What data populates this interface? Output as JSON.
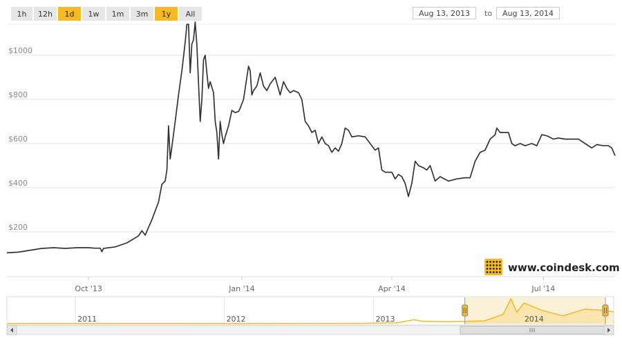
{
  "range_buttons": [
    {
      "label": "1h",
      "active": false
    },
    {
      "label": "12h",
      "active": false
    },
    {
      "label": "1d",
      "active": true
    },
    {
      "label": "1w",
      "active": false
    },
    {
      "label": "1m",
      "active": false
    },
    {
      "label": "3m",
      "active": false
    },
    {
      "label": "1y",
      "active": true
    },
    {
      "label": "All",
      "active": false
    }
  ],
  "date_range": {
    "from": "Aug 13, 2013",
    "to_label": "to",
    "to": "Aug 13, 2014"
  },
  "brand": {
    "text": "www.coindesk.com"
  },
  "colors": {
    "line": "#333333",
    "accent": "#f7b924",
    "grid": "#e6e6e6"
  },
  "chart_data": {
    "type": "line",
    "title": "",
    "xlabel": "",
    "ylabel": "",
    "ylim": [
      0,
      1150
    ],
    "yticks": [
      {
        "value": 200,
        "label": "$200"
      },
      {
        "value": 400,
        "label": "$400"
      },
      {
        "value": 600,
        "label": "$600"
      },
      {
        "value": 800,
        "label": "$800"
      },
      {
        "value": 1000,
        "label": "$1000"
      }
    ],
    "xticks": [
      {
        "date": "2013-10-01",
        "label": "Oct '13"
      },
      {
        "date": "2014-01-01",
        "label": "Jan '14"
      },
      {
        "date": "2014-04-01",
        "label": "Apr '14"
      },
      {
        "date": "2014-07-01",
        "label": "Jul '14"
      }
    ],
    "series": [
      {
        "points": [
          [
            "2013-08-13",
            105
          ],
          [
            "2013-08-20",
            108
          ],
          [
            "2013-08-27",
            117
          ],
          [
            "2013-09-03",
            125
          ],
          [
            "2013-09-10",
            128
          ],
          [
            "2013-09-17",
            125
          ],
          [
            "2013-09-24",
            128
          ],
          [
            "2013-10-01",
            128
          ],
          [
            "2013-10-05",
            126
          ],
          [
            "2013-10-08",
            126
          ],
          [
            "2013-10-09",
            110
          ],
          [
            "2013-10-10",
            125
          ],
          [
            "2013-10-17",
            132
          ],
          [
            "2013-10-24",
            150
          ],
          [
            "2013-10-31",
            182
          ],
          [
            "2013-11-02",
            205
          ],
          [
            "2013-11-04",
            185
          ],
          [
            "2013-11-06",
            220
          ],
          [
            "2013-11-08",
            255
          ],
          [
            "2013-11-10",
            295
          ],
          [
            "2013-11-12",
            335
          ],
          [
            "2013-11-14",
            415
          ],
          [
            "2013-11-16",
            430
          ],
          [
            "2013-11-17",
            480
          ],
          [
            "2013-11-18",
            680
          ],
          [
            "2013-11-19",
            530
          ],
          [
            "2013-11-20",
            585
          ],
          [
            "2013-11-22",
            700
          ],
          [
            "2013-11-24",
            820
          ],
          [
            "2013-11-26",
            930
          ],
          [
            "2013-11-28",
            1060
          ],
          [
            "2013-11-29",
            1140
          ],
          [
            "2013-11-30",
            1140
          ],
          [
            "2013-12-01",
            920
          ],
          [
            "2013-12-02",
            1050
          ],
          [
            "2013-12-03",
            1070
          ],
          [
            "2013-12-04",
            1150
          ],
          [
            "2013-12-05",
            1050
          ],
          [
            "2013-12-06",
            870
          ],
          [
            "2013-12-07",
            700
          ],
          [
            "2013-12-08",
            800
          ],
          [
            "2013-12-09",
            980
          ],
          [
            "2013-12-10",
            1000
          ],
          [
            "2013-12-11",
            920
          ],
          [
            "2013-12-12",
            850
          ],
          [
            "2013-12-13",
            880
          ],
          [
            "2013-12-15",
            830
          ],
          [
            "2013-12-16",
            700
          ],
          [
            "2013-12-17",
            650
          ],
          [
            "2013-12-18",
            530
          ],
          [
            "2013-12-19",
            700
          ],
          [
            "2013-12-20",
            640
          ],
          [
            "2013-12-21",
            600
          ],
          [
            "2013-12-22",
            630
          ],
          [
            "2013-12-24",
            680
          ],
          [
            "2013-12-26",
            750
          ],
          [
            "2013-12-28",
            740
          ],
          [
            "2013-12-30",
            745
          ],
          [
            "2013-12-31",
            760
          ],
          [
            "2014-01-02",
            800
          ],
          [
            "2014-01-04",
            900
          ],
          [
            "2014-01-05",
            950
          ],
          [
            "2014-01-06",
            930
          ],
          [
            "2014-01-07",
            820
          ],
          [
            "2014-01-08",
            840
          ],
          [
            "2014-01-10",
            860
          ],
          [
            "2014-01-12",
            920
          ],
          [
            "2014-01-14",
            860
          ],
          [
            "2014-01-16",
            840
          ],
          [
            "2014-01-18",
            870
          ],
          [
            "2014-01-21",
            900
          ],
          [
            "2014-01-24",
            820
          ],
          [
            "2014-01-26",
            880
          ],
          [
            "2014-01-28",
            850
          ],
          [
            "2014-01-30",
            830
          ],
          [
            "2014-02-01",
            840
          ],
          [
            "2014-02-04",
            830
          ],
          [
            "2014-02-06",
            800
          ],
          [
            "2014-02-08",
            700
          ],
          [
            "2014-02-10",
            680
          ],
          [
            "2014-02-12",
            650
          ],
          [
            "2014-02-14",
            660
          ],
          [
            "2014-02-16",
            600
          ],
          [
            "2014-02-18",
            630
          ],
          [
            "2014-02-20",
            600
          ],
          [
            "2014-02-22",
            590
          ],
          [
            "2014-02-24",
            560
          ],
          [
            "2014-02-26",
            580
          ],
          [
            "2014-02-28",
            565
          ],
          [
            "2014-03-02",
            600
          ],
          [
            "2014-03-04",
            670
          ],
          [
            "2014-03-06",
            660
          ],
          [
            "2014-03-08",
            630
          ],
          [
            "2014-03-12",
            635
          ],
          [
            "2014-03-16",
            630
          ],
          [
            "2014-03-20",
            590
          ],
          [
            "2014-03-22",
            570
          ],
          [
            "2014-03-24",
            580
          ],
          [
            "2014-03-26",
            480
          ],
          [
            "2014-03-28",
            470
          ],
          [
            "2014-03-30",
            470
          ],
          [
            "2014-04-01",
            470
          ],
          [
            "2014-04-03",
            440
          ],
          [
            "2014-04-05",
            460
          ],
          [
            "2014-04-07",
            450
          ],
          [
            "2014-04-09",
            420
          ],
          [
            "2014-04-11",
            360
          ],
          [
            "2014-04-13",
            420
          ],
          [
            "2014-04-15",
            520
          ],
          [
            "2014-04-17",
            500
          ],
          [
            "2014-04-20",
            490
          ],
          [
            "2014-04-22",
            480
          ],
          [
            "2014-04-24",
            500
          ],
          [
            "2014-04-27",
            430
          ],
          [
            "2014-04-30",
            450
          ],
          [
            "2014-05-05",
            430
          ],
          [
            "2014-05-10",
            440
          ],
          [
            "2014-05-15",
            445
          ],
          [
            "2014-05-18",
            445
          ],
          [
            "2014-05-21",
            520
          ],
          [
            "2014-05-24",
            560
          ],
          [
            "2014-05-27",
            570
          ],
          [
            "2014-05-30",
            620
          ],
          [
            "2014-06-02",
            640
          ],
          [
            "2014-06-03",
            670
          ],
          [
            "2014-06-05",
            650
          ],
          [
            "2014-06-07",
            650
          ],
          [
            "2014-06-10",
            650
          ],
          [
            "2014-06-12",
            600
          ],
          [
            "2014-06-14",
            590
          ],
          [
            "2014-06-17",
            600
          ],
          [
            "2014-06-20",
            590
          ],
          [
            "2014-06-24",
            600
          ],
          [
            "2014-06-27",
            590
          ],
          [
            "2014-06-30",
            640
          ],
          [
            "2014-07-03",
            635
          ],
          [
            "2014-07-07",
            620
          ],
          [
            "2014-07-10",
            625
          ],
          [
            "2014-07-14",
            620
          ],
          [
            "2014-07-18",
            620
          ],
          [
            "2014-07-22",
            620
          ],
          [
            "2014-07-26",
            600
          ],
          [
            "2014-07-30",
            580
          ],
          [
            "2014-08-02",
            595
          ],
          [
            "2014-08-06",
            590
          ],
          [
            "2014-08-09",
            590
          ],
          [
            "2014-08-11",
            580
          ],
          [
            "2014-08-13",
            545
          ]
        ]
      }
    ]
  },
  "navigator": {
    "year_labels": [
      {
        "date": "2011-01-01",
        "label": "2011"
      },
      {
        "date": "2012-01-01",
        "label": "2012"
      },
      {
        "date": "2013-01-01",
        "label": "2013"
      },
      {
        "date": "2014-01-01",
        "label": "2014"
      }
    ],
    "start": "2010-07-17",
    "end": "2014-08-13",
    "selected": [
      "2013-08-13",
      "2014-08-13"
    ],
    "points": [
      [
        "2010-07-17",
        0
      ],
      [
        "2011-06-01",
        10
      ],
      [
        "2011-12-01",
        3
      ],
      [
        "2012-06-01",
        6
      ],
      [
        "2012-12-01",
        13
      ],
      [
        "2013-03-01",
        40
      ],
      [
        "2013-04-10",
        180
      ],
      [
        "2013-05-01",
        110
      ],
      [
        "2013-07-01",
        90
      ],
      [
        "2013-08-13",
        105
      ],
      [
        "2013-10-01",
        128
      ],
      [
        "2013-11-15",
        430
      ],
      [
        "2013-12-04",
        1150
      ],
      [
        "2013-12-18",
        530
      ],
      [
        "2014-01-05",
        950
      ],
      [
        "2014-02-20",
        600
      ],
      [
        "2014-04-11",
        360
      ],
      [
        "2014-06-03",
        670
      ],
      [
        "2014-07-10",
        625
      ],
      [
        "2014-08-13",
        545
      ]
    ]
  }
}
